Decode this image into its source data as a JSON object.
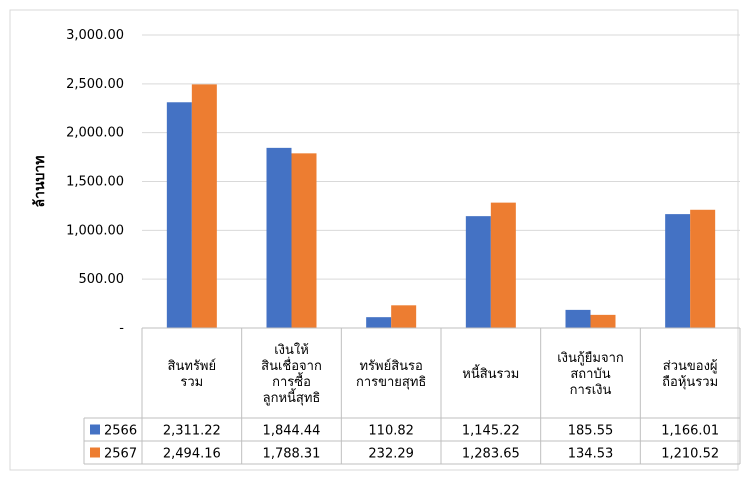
{
  "chart_data": {
    "type": "bar",
    "title": "",
    "xlabel": "",
    "ylabel": "ล้านบาท",
    "ylim": [
      0,
      3000
    ],
    "yticks": [
      {
        "value": 0,
        "label": "-"
      },
      {
        "value": 500,
        "label": "500.00"
      },
      {
        "value": 1000,
        "label": "1,000.00"
      },
      {
        "value": 1500,
        "label": "1,500.00"
      },
      {
        "value": 2000,
        "label": "2,000.00"
      },
      {
        "value": 2500,
        "label": "2,500.00"
      },
      {
        "value": 3000,
        "label": "3,000.00"
      }
    ],
    "grid": true,
    "legend": "data-table",
    "categories": [
      [
        "สินทรัพย์",
        "รวม"
      ],
      [
        "เงินให้",
        "สินเชื่อจาก",
        "การซื้อ",
        "ลูกหนี้สุทธิ"
      ],
      [
        "ทรัพย์สินรอ",
        "การขายสุทธิ"
      ],
      [
        "หนี้สินรวม"
      ],
      [
        "เงินกู้ยืมจาก",
        "สถาบัน",
        "การเงิน"
      ],
      [
        "ส่วนของผู้",
        "ถือหุ้นรวม"
      ]
    ],
    "series": [
      {
        "name": "2566",
        "color": "#4472c4",
        "values": [
          2311.22,
          1844.44,
          110.82,
          1145.22,
          185.55,
          1166.01
        ],
        "labels": [
          "2,311.22",
          "1,844.44",
          "110.82",
          "1,145.22",
          "185.55",
          "1,166.01"
        ]
      },
      {
        "name": "2567",
        "color": "#ed7d31",
        "values": [
          2494.16,
          1788.31,
          232.29,
          1283.65,
          134.53,
          1210.52
        ],
        "labels": [
          "2,494.16",
          "1,788.31",
          "232.29",
          "1,283.65",
          "134.53",
          "1,210.52"
        ]
      }
    ]
  }
}
